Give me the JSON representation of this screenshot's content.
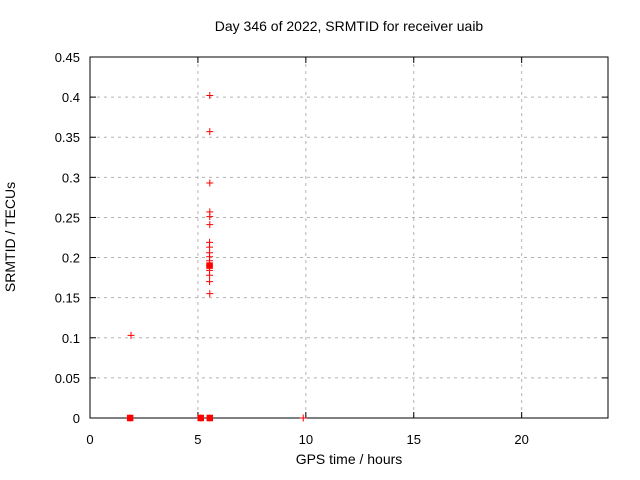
{
  "chart_data": {
    "type": "scatter",
    "title": "Day 346 of 2022, SRMTID for receiver uaib",
    "xlabel": "GPS time / hours",
    "ylabel": "SRMTID / TECUs",
    "xlim": [
      0,
      24
    ],
    "ylim": [
      0,
      0.45
    ],
    "x_ticks": [
      0,
      5,
      10,
      15,
      20
    ],
    "x_tick_labels": [
      "0",
      "5",
      "10",
      "15",
      "20"
    ],
    "y_ticks": [
      0,
      0.05,
      0.1,
      0.15,
      0.2,
      0.25,
      0.3,
      0.35,
      0.4,
      0.45
    ],
    "y_tick_labels": [
      "0",
      "0.05",
      "0.1",
      "0.15",
      "0.2",
      "0.25",
      "0.3",
      "0.35",
      "0.4",
      "0.45"
    ],
    "grid": "dashed",
    "legend": "none",
    "marker": "plus",
    "marker_color": "#ff0000",
    "grid_color": "#b4b4b4",
    "series": [
      {
        "name": "SRMTID",
        "points": [
          {
            "x": 1.9,
            "y": 0.103
          },
          {
            "x": 5.55,
            "y": 0.402
          },
          {
            "x": 5.55,
            "y": 0.357
          },
          {
            "x": 5.55,
            "y": 0.293
          },
          {
            "x": 5.55,
            "y": 0.257
          },
          {
            "x": 5.55,
            "y": 0.251
          },
          {
            "x": 5.55,
            "y": 0.241
          },
          {
            "x": 5.54,
            "y": 0.219
          },
          {
            "x": 5.54,
            "y": 0.213
          },
          {
            "x": 5.54,
            "y": 0.206
          },
          {
            "x": 5.54,
            "y": 0.201
          },
          {
            "x": 5.54,
            "y": 0.196
          },
          {
            "x": 5.54,
            "y": 0.19,
            "bold": true
          },
          {
            "x": 5.54,
            "y": 0.184
          },
          {
            "x": 5.54,
            "y": 0.178
          },
          {
            "x": 5.54,
            "y": 0.17
          },
          {
            "x": 5.55,
            "y": 0.155
          },
          {
            "x": 1.86,
            "y": 0,
            "bold": true
          },
          {
            "x": 5.13,
            "y": 0,
            "bold": true
          },
          {
            "x": 5.55,
            "y": 0,
            "bold": true
          },
          {
            "x": 9.88,
            "y": 0
          }
        ]
      }
    ]
  }
}
